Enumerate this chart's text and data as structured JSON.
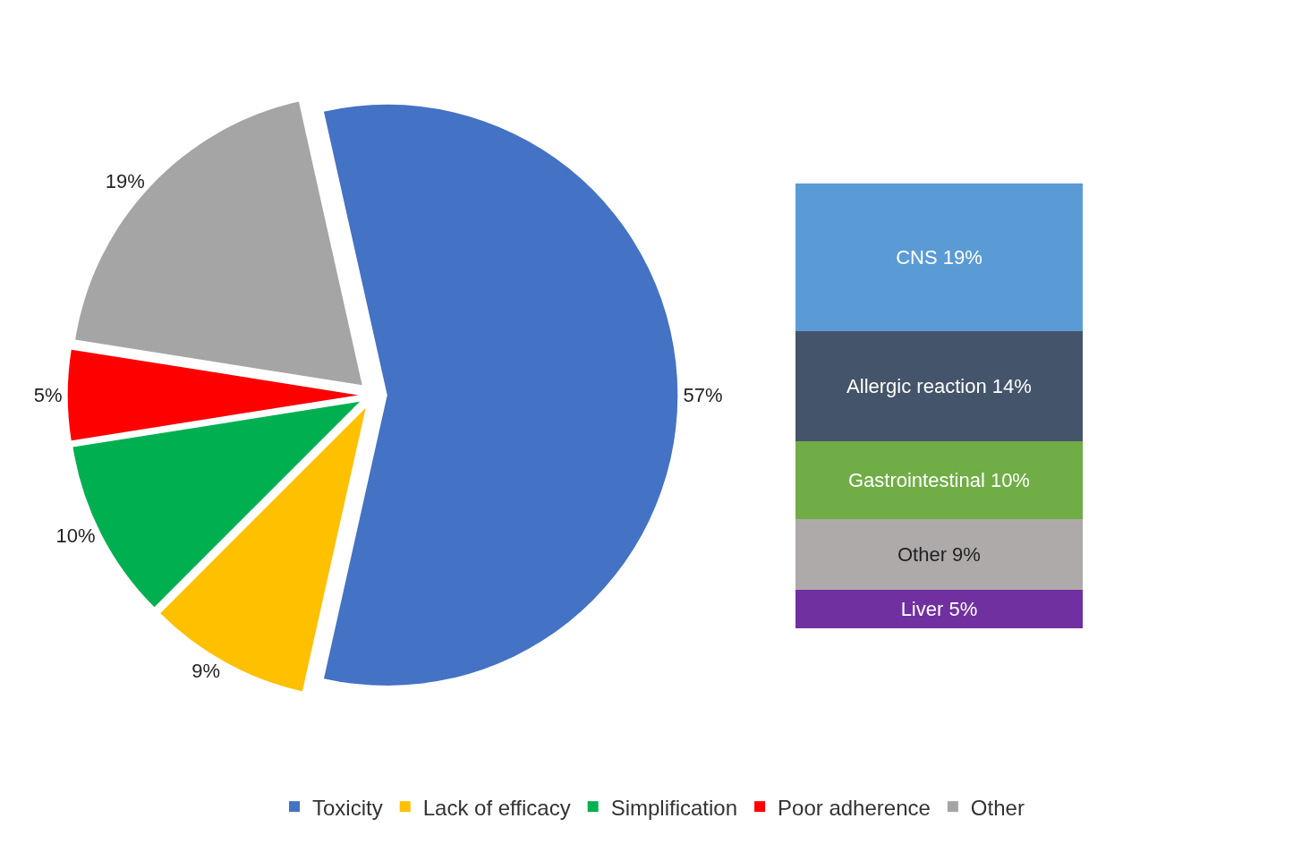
{
  "chart_data": [
    {
      "type": "pie",
      "categories": [
        "Toxicity",
        "Lack of efficacy",
        "Simplification",
        "Poor adherence",
        "Other"
      ],
      "values": [
        57,
        9,
        10,
        5,
        19
      ],
      "colors": [
        "#4472c4",
        "#ffc000",
        "#00b050",
        "#ff0000",
        "#a5a5a5"
      ],
      "value_labels": [
        "57%",
        "9%",
        "10%",
        "5%",
        "19%"
      ],
      "legend": "bottom"
    },
    {
      "type": "bar",
      "stacked": true,
      "categories": [
        null
      ],
      "series": [
        {
          "color": "#7030a0",
          "values": [
            5
          ],
          "value_labels": [
            "Liver 5%"
          ]
        },
        {
          "color": "#aeaaaa",
          "values": [
            9
          ],
          "value_labels": [
            "Other 9%"
          ]
        },
        {
          "color": "#70ad47",
          "values": [
            10
          ],
          "value_labels": [
            "Gastrointestinal 10%"
          ]
        },
        {
          "color": "#44546a",
          "values": [
            14
          ],
          "value_labels": [
            "Allergic reaction 14%"
          ]
        },
        {
          "color": "#5b9bd5",
          "values": [
            19
          ],
          "value_labels": [
            "CNS 19%"
          ]
        }
      ]
    }
  ]
}
